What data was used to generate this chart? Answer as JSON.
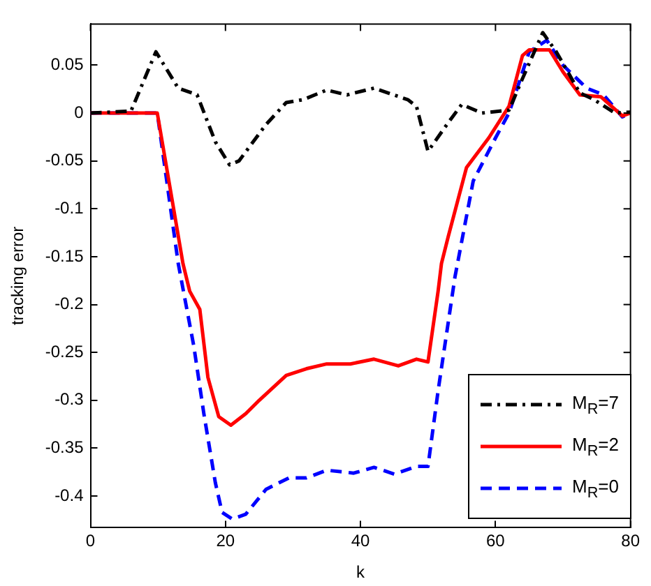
{
  "chart_data": {
    "type": "line",
    "xlabel": "k",
    "ylabel": "tracking error",
    "xlim": [
      0,
      80
    ],
    "xticks": [
      0,
      20,
      40,
      60,
      80
    ],
    "ylim": [
      -0.433,
      0.093
    ],
    "yticks": [
      0.05,
      0,
      -0.05,
      -0.1,
      -0.15,
      -0.2,
      -0.25,
      -0.3,
      -0.35,
      -0.4
    ],
    "grid": false,
    "legend": "bottom right",
    "marker": "none",
    "series": [
      {
        "name": "M$_{R}$=7",
        "color": "#000000",
        "line_style": "dashdot",
        "x": [
          0,
          6,
          9.7,
          13,
          15.8,
          18.5,
          20.6,
          22,
          26,
          29,
          31.5,
          35,
          38,
          42,
          47,
          48.3,
          50,
          53,
          55,
          58,
          62,
          64,
          67,
          69,
          72.5,
          74.6,
          77.7,
          80
        ],
        "values": [
          0,
          0.002,
          0.064,
          0.026,
          0.019,
          -0.03,
          -0.054,
          -0.05,
          -0.012,
          0.011,
          0.014,
          0.024,
          0.019,
          0.026,
          0.014,
          0.007,
          -0.04,
          -0.01,
          0.009,
          0,
          0.003,
          0.036,
          0.084,
          0.064,
          0.021,
          0.014,
          0,
          0.001
        ]
      },
      {
        "name": "M$_{R}$=2",
        "color": "#ff0000",
        "line_style": "solid",
        "x": [
          0,
          9.9,
          13.7,
          14.7,
          16.2,
          17.4,
          19,
          20.8,
          23,
          25,
          29,
          32,
          35,
          38.5,
          42,
          45.6,
          48.3,
          50,
          51.5,
          52,
          53,
          55.7,
          59,
          62,
          64,
          65,
          68,
          70,
          72.5,
          75.6,
          78.8,
          80
        ],
        "values": [
          0,
          0,
          -0.157,
          -0.186,
          -0.205,
          -0.276,
          -0.317,
          -0.326,
          -0.314,
          -0.3,
          -0.274,
          -0.267,
          -0.262,
          -0.262,
          -0.257,
          -0.264,
          -0.257,
          -0.26,
          -0.186,
          -0.157,
          -0.129,
          -0.057,
          -0.026,
          0.007,
          0.06,
          0.066,
          0.066,
          0.043,
          0.019,
          0.017,
          -0.003,
          0
        ]
      },
      {
        "name": "M$_{R}$=0",
        "color": "#0000ff",
        "line_style": "dashed",
        "x": [
          0,
          9.9,
          13,
          15.3,
          16.8,
          18.5,
          19.5,
          21,
          23,
          26,
          29.4,
          32,
          35,
          39,
          42,
          45,
          48.3,
          50,
          51.5,
          54,
          56.7,
          60,
          62,
          65,
          67.6,
          70,
          73.5,
          76,
          78.8,
          80
        ],
        "values": [
          0,
          0,
          -0.157,
          -0.243,
          -0.314,
          -0.386,
          -0.417,
          -0.424,
          -0.419,
          -0.393,
          -0.381,
          -0.381,
          -0.373,
          -0.376,
          -0.37,
          -0.377,
          -0.369,
          -0.369,
          -0.29,
          -0.171,
          -0.071,
          -0.026,
          0,
          0.064,
          0.076,
          0.05,
          0.026,
          0.019,
          -0.004,
          0
        ]
      }
    ]
  }
}
